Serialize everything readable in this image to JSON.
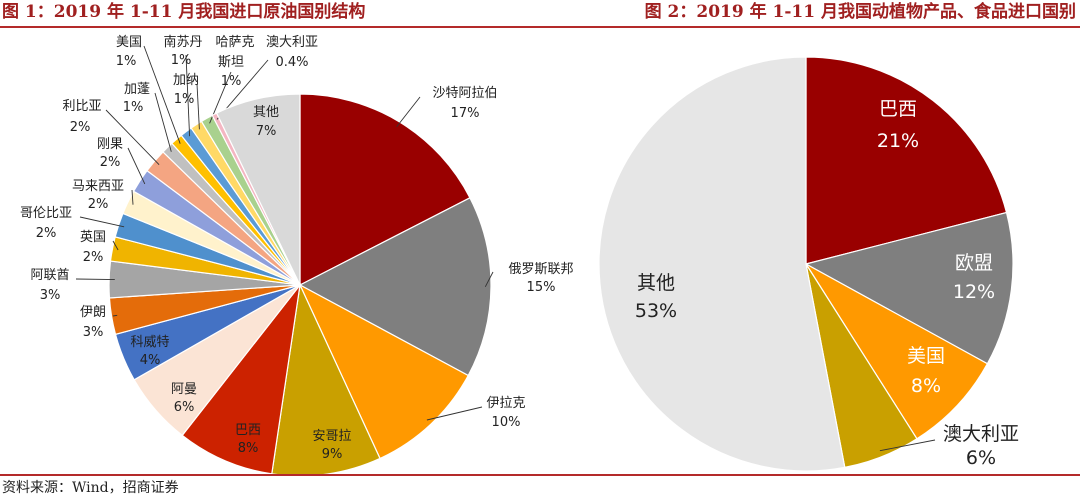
{
  "figure1": {
    "title": "图 1：2019 年 1-11 月我国进口原油国别结构"
  },
  "figure2": {
    "title": "图 2：2019 年 1-11 月我国动植物产品、食品进口国别"
  },
  "source": "资料来源：Wind，招商证券",
  "chart_data": [
    {
      "type": "pie",
      "title": "图 1：2019 年 1-11 月我国进口原油国别结构",
      "unit": "%",
      "slices": [
        {
          "name": "沙特阿拉伯",
          "value": 17,
          "label": "17%",
          "color": "#990000"
        },
        {
          "name": "俄罗斯联邦",
          "value": 15,
          "label": "15%",
          "color": "#7f7f7f"
        },
        {
          "name": "伊拉克",
          "value": 10,
          "label": "10%",
          "color": "#ff9900"
        },
        {
          "name": "安哥拉",
          "value": 9,
          "label": "9%",
          "color": "#c9a000"
        },
        {
          "name": "巴西",
          "value": 8,
          "label": "8%",
          "color": "#cc2200"
        },
        {
          "name": "阿曼",
          "value": 6,
          "label": "6%",
          "color": "#fbe4d5"
        },
        {
          "name": "科威特",
          "value": 4,
          "label": "4%",
          "color": "#4472c4"
        },
        {
          "name": "伊朗",
          "value": 3,
          "label": "3%",
          "color": "#e46c0a"
        },
        {
          "name": "阿联酋",
          "value": 3,
          "label": "3%",
          "color": "#a5a5a5"
        },
        {
          "name": "英国",
          "value": 2,
          "label": "2%",
          "color": "#f0b400"
        },
        {
          "name": "哥伦比亚",
          "value": 2,
          "label": "2%",
          "color": "#4f90cd"
        },
        {
          "name": "马来西亚",
          "value": 2,
          "label": "2%",
          "color": "#fff2cc"
        },
        {
          "name": "刚果",
          "value": 2,
          "label": "2%",
          "color": "#8e9fdb"
        },
        {
          "name": "利比亚",
          "value": 2,
          "label": "2%",
          "color": "#f4a582"
        },
        {
          "name": "加蓬",
          "value": 1,
          "label": "1%",
          "color": "#c0c0c0"
        },
        {
          "name": "美国",
          "value": 1,
          "label": "1%",
          "color": "#ffc000"
        },
        {
          "name": "南苏丹",
          "value": 1,
          "label": "1%",
          "color": "#5b9bd5"
        },
        {
          "name": "加纳",
          "value": 1,
          "label": "1%",
          "color": "#ffd966"
        },
        {
          "name": "哈萨克斯坦",
          "value": 1,
          "label": "1%",
          "color": "#a9d18e"
        },
        {
          "name": "澳大利亚",
          "value": 0.4,
          "label": "0.4%",
          "color": "#f4b6c2"
        },
        {
          "name": "其他",
          "value": 7,
          "label": "7%",
          "color": "#d9d9d9"
        }
      ]
    },
    {
      "type": "pie",
      "title": "图 2：2019 年 1-11 月我国动植物产品、食品进口国别",
      "unit": "%",
      "slices": [
        {
          "name": "巴西",
          "value": 21,
          "label": "21%",
          "color": "#990000"
        },
        {
          "name": "欧盟",
          "value": 12,
          "label": "12%",
          "color": "#7f7f7f"
        },
        {
          "name": "美国",
          "value": 8,
          "label": "8%",
          "color": "#ff9900"
        },
        {
          "name": "澳大利亚",
          "value": 6,
          "label": "6%",
          "color": "#c9a000"
        },
        {
          "name": "其他",
          "value": 53,
          "label": "53%",
          "color": "#e6e6e6"
        }
      ]
    }
  ]
}
